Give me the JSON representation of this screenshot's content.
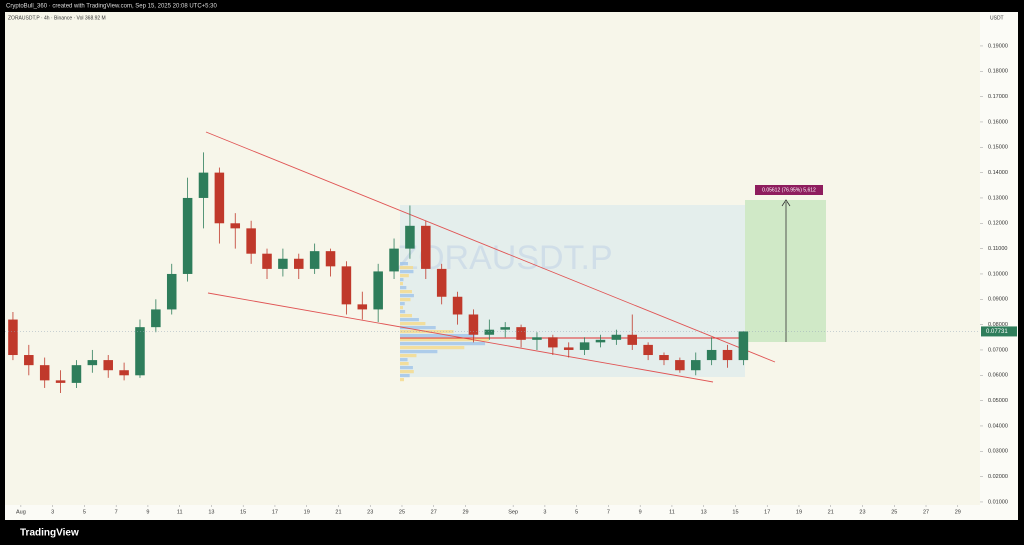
{
  "header": "CryptoBull_360 · created with TradingView.com, Sep 15, 2025 20:08 UTC+5:30",
  "brand": "TradingView",
  "chart_data": {
    "type": "candlestick",
    "legend": "ZORAUSDT.P · 4h · Binance · Vol 368.92 M",
    "watermark": "ZORAUSDT.P",
    "y_unit": "USDT",
    "measure_label": "0.05612 (76.95%) 5,612",
    "last_price": 0.07731,
    "up_color": "#2e7d5b",
    "down_color": "#c0392b",
    "xlim": [
      -1,
      60.4
    ],
    "ylim": [
      0.0088,
      0.2034
    ],
    "xticks": [
      {
        "value": 0,
        "label": "Aug"
      },
      2,
      4,
      6,
      8,
      10,
      12,
      14,
      16,
      18,
      20,
      22,
      24,
      26,
      28,
      {
        "value": 31,
        "label": "Sep"
      },
      33,
      35,
      37,
      39,
      41,
      43,
      45,
      47,
      49,
      51,
      53,
      55,
      57,
      59
    ],
    "xtick_labels": [
      "Aug",
      "3",
      "5",
      "7",
      "9",
      "11",
      "13",
      "15",
      "17",
      "19",
      "21",
      "23",
      "25",
      "27",
      "29",
      "Sep",
      "3",
      "5",
      "7",
      "9",
      "11",
      "13",
      "15",
      "17",
      "19",
      "21",
      "23",
      "25",
      "27",
      "29"
    ],
    "yticks": [
      {
        "value": 0.01,
        "label": "0.01000"
      },
      {
        "value": 0.02,
        "label": "0.02000"
      },
      {
        "value": 0.03,
        "label": "0.03000"
      },
      {
        "value": 0.04,
        "label": "0.04000"
      },
      {
        "value": 0.05,
        "label": "0.05000"
      },
      {
        "value": 0.06,
        "label": "0.06000"
      },
      {
        "value": 0.07,
        "label": "0.07000"
      },
      {
        "value": 0.08,
        "label": "0.08000"
      },
      {
        "value": 0.09,
        "label": "0.09000"
      },
      {
        "value": 0.1,
        "label": "0.10000"
      },
      {
        "value": 0.11,
        "label": "0.11000"
      },
      {
        "value": 0.12,
        "label": "0.12000"
      },
      {
        "value": 0.13,
        "label": "0.13000"
      },
      {
        "value": 0.14,
        "label": "0.14000"
      },
      {
        "value": 0.15,
        "label": "0.15000"
      },
      {
        "value": 0.16,
        "label": "0.16000"
      },
      {
        "value": 0.17,
        "label": "0.17000"
      },
      {
        "value": 0.18,
        "label": "0.18000"
      },
      {
        "value": 0.19,
        "label": "0.19000"
      }
    ],
    "x": [
      -0.5,
      0.5,
      1.5,
      2.5,
      3.5,
      4.5,
      5.5,
      6.5,
      7.5,
      8.5,
      9.5,
      10.5,
      11.5,
      12.5,
      13.5,
      14.5,
      15.5,
      16.5,
      17.5,
      18.5,
      19.5,
      20.5,
      21.5,
      22.5,
      23.5,
      24.5,
      25.5,
      26.5,
      27.5,
      28.5,
      29.5,
      30.5,
      31.5,
      32.5,
      33.5,
      34.5,
      35.5,
      36.5,
      37.5,
      38.5,
      39.5,
      40.5,
      41.5,
      42.5,
      43.5,
      44.5,
      45.5
    ],
    "open": [
      0.082,
      0.068,
      0.064,
      0.058,
      0.057,
      0.064,
      0.066,
      0.062,
      0.06,
      0.079,
      0.086,
      0.1,
      0.13,
      0.14,
      0.12,
      0.118,
      0.108,
      0.102,
      0.106,
      0.102,
      0.109,
      0.103,
      0.088,
      0.086,
      0.101,
      0.11,
      0.119,
      0.102,
      0.091,
      0.084,
      0.076,
      0.078,
      0.079,
      0.074,
      0.075,
      0.071,
      0.07,
      0.073,
      0.074,
      0.076,
      0.072,
      0.068,
      0.066,
      0.062,
      0.066,
      0.07,
      0.066
    ],
    "high": [
      0.085,
      0.072,
      0.067,
      0.062,
      0.066,
      0.07,
      0.068,
      0.065,
      0.082,
      0.09,
      0.104,
      0.138,
      0.148,
      0.142,
      0.124,
      0.121,
      0.11,
      0.11,
      0.108,
      0.112,
      0.11,
      0.105,
      0.093,
      0.104,
      0.114,
      0.127,
      0.121,
      0.104,
      0.093,
      0.086,
      0.082,
      0.081,
      0.08,
      0.077,
      0.076,
      0.073,
      0.075,
      0.076,
      0.078,
      0.084,
      0.073,
      0.069,
      0.067,
      0.069,
      0.075,
      0.072,
      0.0775
    ],
    "low": [
      0.066,
      0.06,
      0.055,
      0.053,
      0.055,
      0.061,
      0.059,
      0.058,
      0.059,
      0.077,
      0.084,
      0.097,
      0.118,
      0.112,
      0.11,
      0.104,
      0.098,
      0.099,
      0.098,
      0.1,
      0.099,
      0.084,
      0.082,
      0.081,
      0.098,
      0.106,
      0.098,
      0.088,
      0.08,
      0.073,
      0.074,
      0.075,
      0.071,
      0.07,
      0.068,
      0.067,
      0.068,
      0.071,
      0.072,
      0.07,
      0.066,
      0.064,
      0.061,
      0.06,
      0.064,
      0.063,
      0.064
    ],
    "close": [
      0.068,
      0.064,
      0.058,
      0.057,
      0.064,
      0.066,
      0.062,
      0.06,
      0.079,
      0.086,
      0.1,
      0.13,
      0.14,
      0.12,
      0.118,
      0.108,
      0.102,
      0.106,
      0.102,
      0.109,
      0.103,
      0.088,
      0.086,
      0.101,
      0.11,
      0.119,
      0.102,
      0.091,
      0.084,
      0.076,
      0.078,
      0.079,
      0.074,
      0.075,
      0.071,
      0.07,
      0.073,
      0.074,
      0.076,
      0.072,
      0.068,
      0.066,
      0.062,
      0.066,
      0.07,
      0.066,
      0.07731
    ]
  }
}
